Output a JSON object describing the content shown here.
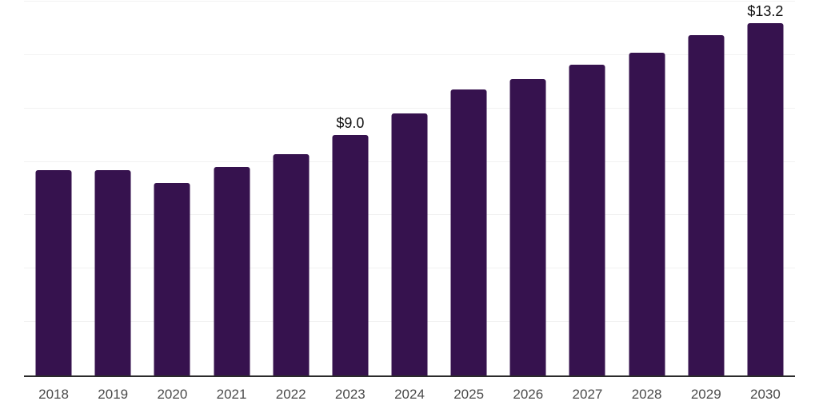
{
  "chart_data": {
    "type": "bar",
    "title": "",
    "xlabel": "",
    "ylabel": "",
    "categories": [
      "2018",
      "2019",
      "2020",
      "2021",
      "2022",
      "2023",
      "2024",
      "2025",
      "2026",
      "2027",
      "2028",
      "2029",
      "2030"
    ],
    "values": [
      7.7,
      7.7,
      7.2,
      7.8,
      8.3,
      9.0,
      9.8,
      10.7,
      11.1,
      11.65,
      12.1,
      12.75,
      13.2
    ],
    "data_labels": {
      "2023": "$9.0",
      "2030": "$13.2"
    },
    "ylim": [
      0,
      14
    ],
    "gridline_interval": 2,
    "grid": true,
    "legend": false,
    "colors": {
      "bar": "#36124E",
      "gridline": "#f2f2f2",
      "axis_line": "#2b2b2b",
      "tick_label": "#4a4a4a",
      "data_label": "#111111",
      "background": "#ffffff"
    }
  }
}
